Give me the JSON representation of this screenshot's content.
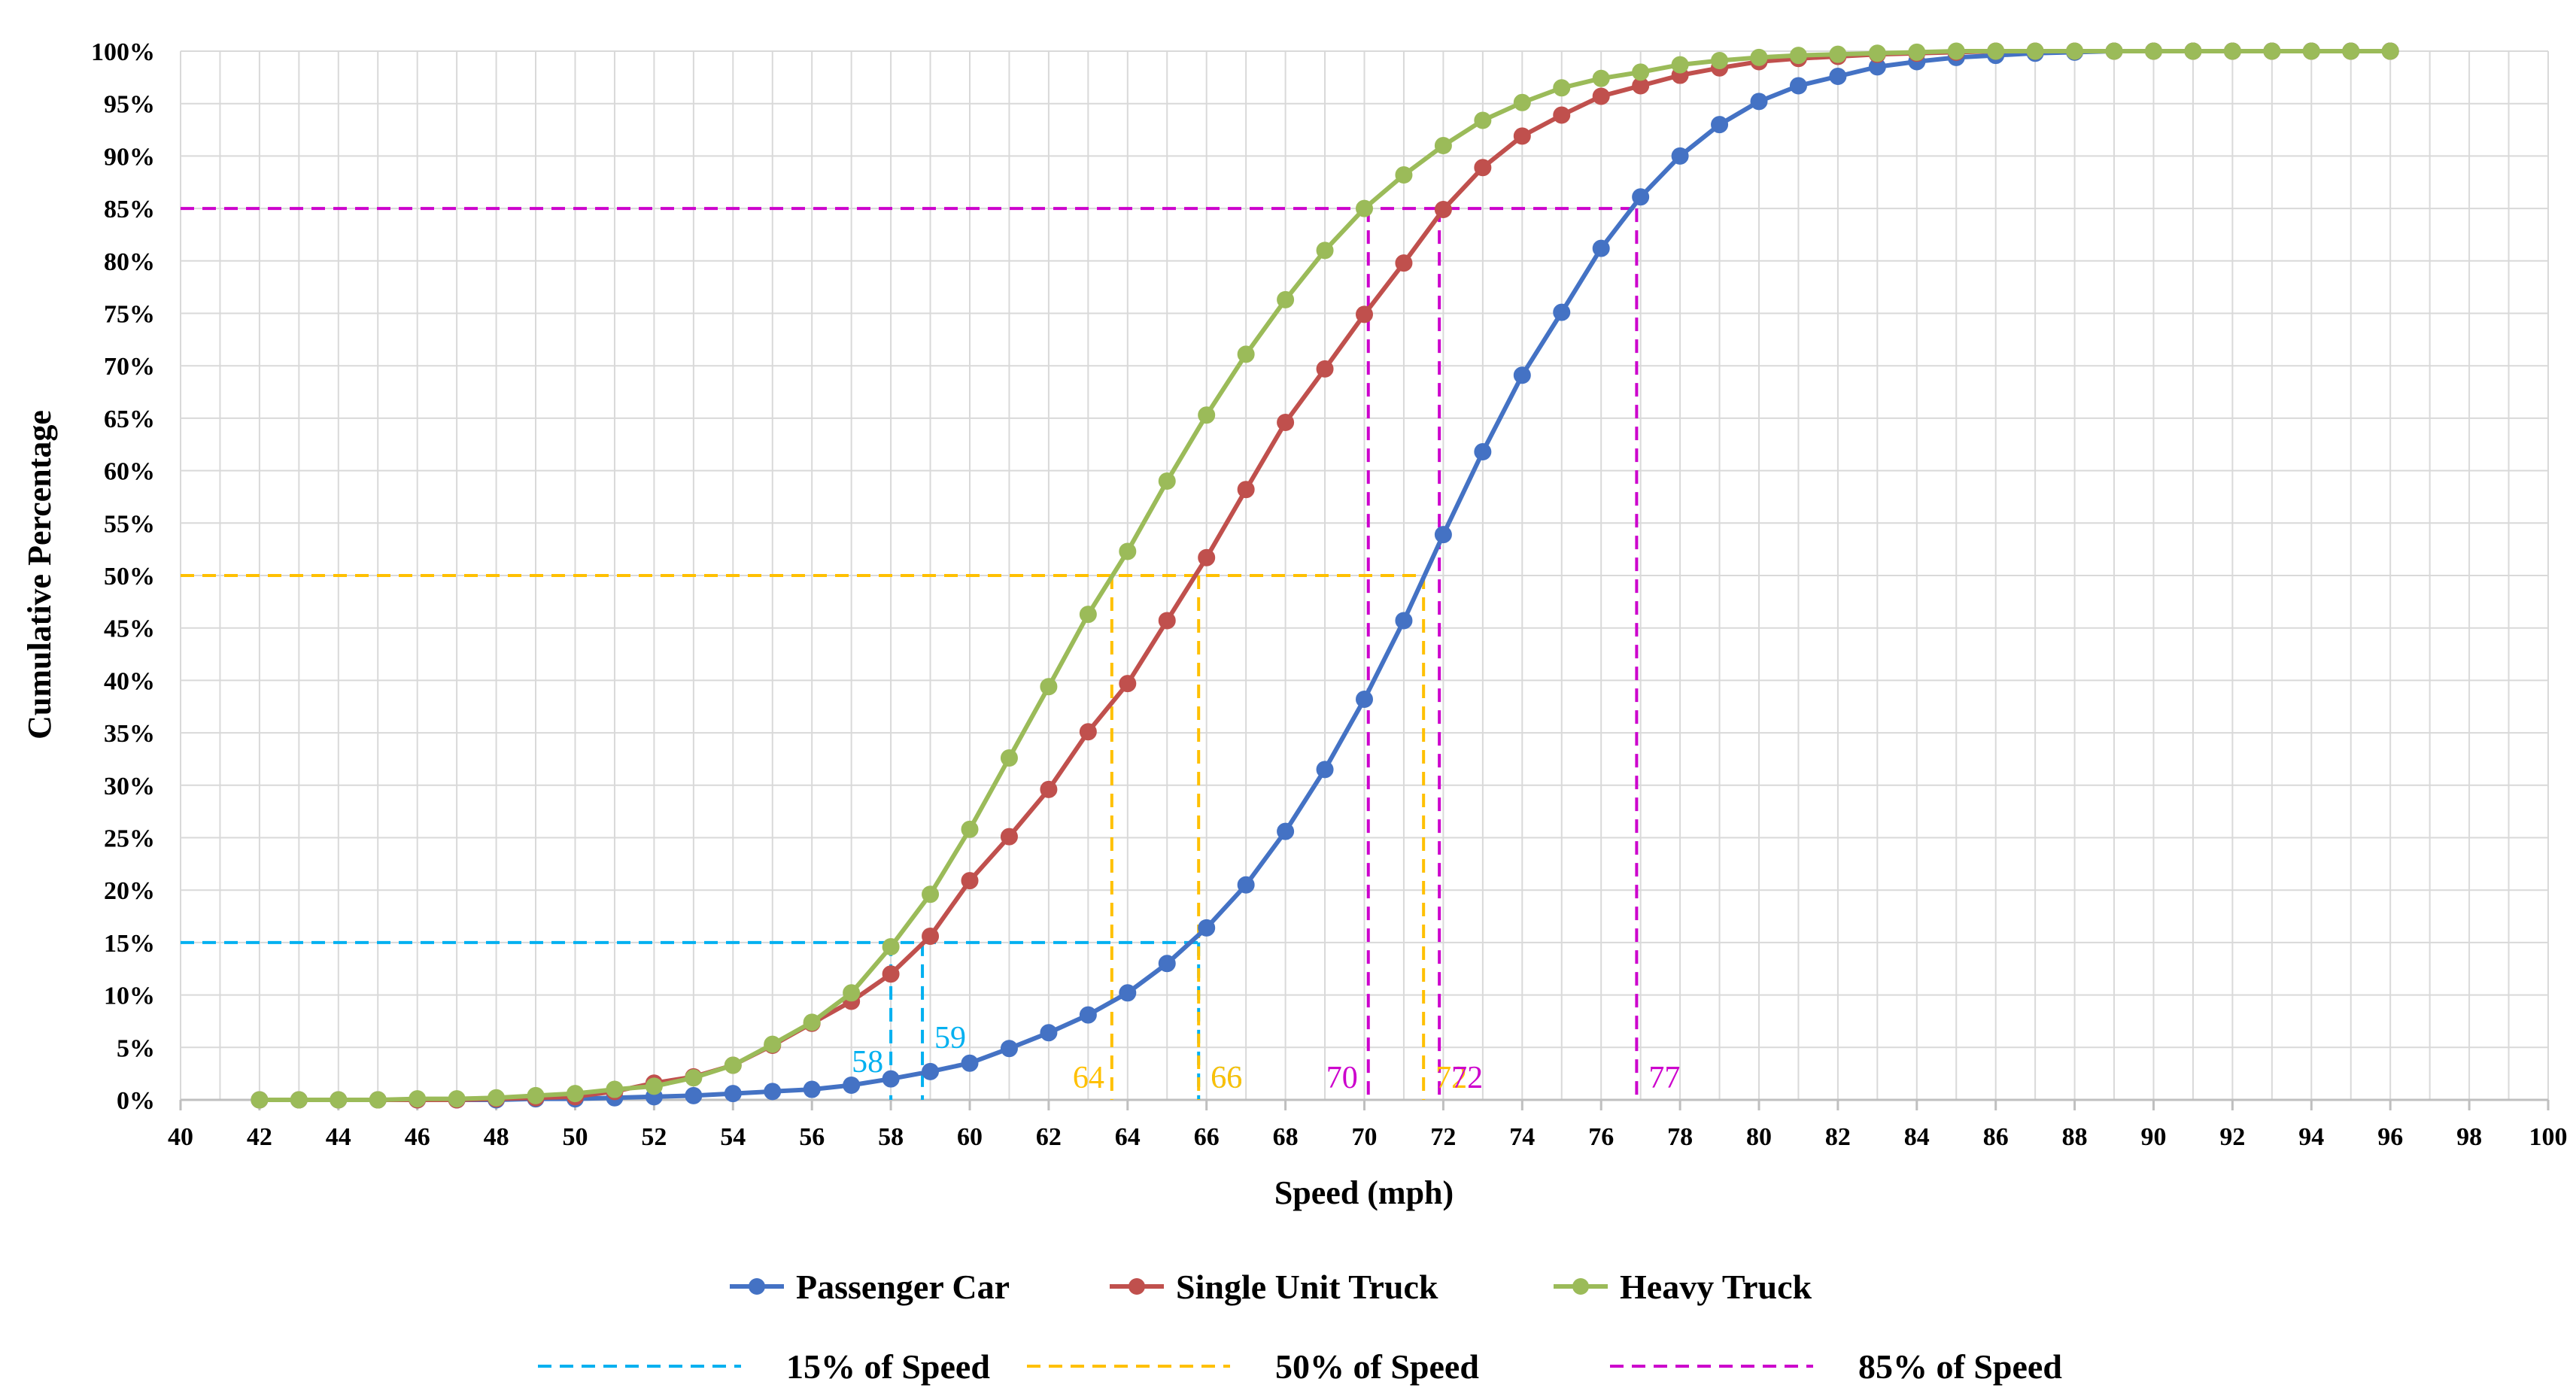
{
  "chart_data": {
    "type": "line",
    "xlabel": "Speed (mph)",
    "ylabel": "Cumulative Percentage",
    "xlim": [
      40,
      100
    ],
    "ylim": [
      0,
      100
    ],
    "x_ticks": [
      "40",
      "42",
      "44",
      "46",
      "48",
      "50",
      "52",
      "54",
      "56",
      "58",
      "60",
      "62",
      "64",
      "66",
      "68",
      "70",
      "72",
      "74",
      "76",
      "78",
      "80",
      "82",
      "84",
      "86",
      "88",
      "90",
      "92",
      "94",
      "96",
      "98",
      "100"
    ],
    "y_ticks": [
      "0%",
      "5%",
      "10%",
      "15%",
      "20%",
      "25%",
      "30%",
      "35%",
      "40%",
      "45%",
      "50%",
      "55%",
      "60%",
      "65%",
      "70%",
      "75%",
      "80%",
      "85%",
      "90%",
      "95%",
      "100%"
    ],
    "grid": true,
    "legend_position": "bottom",
    "x": [
      42,
      43,
      44,
      45,
      46,
      47,
      48,
      49,
      50,
      51,
      52,
      53,
      54,
      55,
      56,
      57,
      58,
      59,
      60,
      61,
      62,
      63,
      64,
      65,
      66,
      67,
      68,
      69,
      70,
      71,
      72,
      73,
      74,
      75,
      76,
      77,
      78,
      79,
      80,
      81,
      82,
      83,
      84,
      85,
      86,
      87,
      88,
      89,
      90,
      91,
      92,
      93,
      94,
      95,
      96
    ],
    "series": [
      {
        "name": "Passenger Car",
        "color": "#4472C4",
        "values": [
          0,
          0,
          0,
          0,
          0,
          0,
          0,
          0.1,
          0.1,
          0.2,
          0.3,
          0.4,
          0.6,
          0.8,
          1.0,
          1.4,
          2.0,
          2.7,
          3.5,
          4.9,
          6.4,
          8.1,
          10.2,
          13.0,
          16.4,
          20.5,
          25.6,
          31.5,
          38.2,
          45.7,
          53.9,
          61.8,
          69.1,
          75.1,
          81.2,
          86.1,
          90.0,
          93.0,
          95.2,
          96.7,
          97.6,
          98.5,
          99.0,
          99.4,
          99.6,
          99.8,
          99.9,
          100,
          100,
          100,
          100,
          100,
          100,
          100,
          100
        ]
      },
      {
        "name": "Single Unit Truck",
        "color": "#C0504D",
        "values": [
          0,
          0,
          0,
          0,
          0,
          0,
          0.1,
          0.2,
          0.3,
          0.8,
          1.6,
          2.2,
          3.3,
          5.2,
          7.3,
          9.4,
          12.0,
          15.6,
          20.9,
          25.1,
          29.6,
          35.1,
          39.7,
          45.7,
          51.7,
          58.2,
          64.6,
          69.7,
          74.9,
          79.8,
          84.9,
          88.9,
          91.9,
          93.9,
          95.7,
          96.7,
          97.7,
          98.4,
          99.0,
          99.3,
          99.5,
          99.7,
          99.8,
          99.9,
          100,
          100,
          100,
          100,
          100,
          100,
          100,
          100,
          100,
          100,
          100
        ]
      },
      {
        "name": "Heavy Truck",
        "color": "#9BBB59",
        "values": [
          0,
          0,
          0,
          0,
          0.1,
          0.1,
          0.2,
          0.4,
          0.6,
          1.0,
          1.3,
          2.1,
          3.3,
          5.3,
          7.4,
          10.2,
          14.6,
          19.6,
          25.8,
          32.6,
          39.4,
          46.3,
          52.3,
          59.0,
          65.3,
          71.1,
          76.3,
          81.0,
          85.0,
          88.2,
          91.0,
          93.4,
          95.1,
          96.5,
          97.4,
          98.0,
          98.7,
          99.1,
          99.4,
          99.6,
          99.7,
          99.8,
          99.9,
          100,
          100,
          100,
          100,
          100,
          100,
          100,
          100,
          100,
          100,
          100,
          100
        ]
      }
    ],
    "reference_lines": [
      {
        "name": "15% of Speed",
        "color": "#00B0F0",
        "y": 15,
        "x_values": [
          58,
          58.8,
          65.8
        ],
        "labels": [
          "58",
          "59",
          "66"
        ]
      },
      {
        "name": "50% of Speed",
        "color": "#FFC000",
        "y": 50,
        "x_values": [
          63.6,
          65.8,
          71.5
        ],
        "labels": [
          "64",
          "66",
          "72"
        ]
      },
      {
        "name": "85% of Speed",
        "color": "#CC00CC",
        "y": 85,
        "x_values": [
          70.1,
          71.9,
          76.9
        ],
        "labels": [
          "70",
          "72",
          "77"
        ]
      }
    ]
  }
}
